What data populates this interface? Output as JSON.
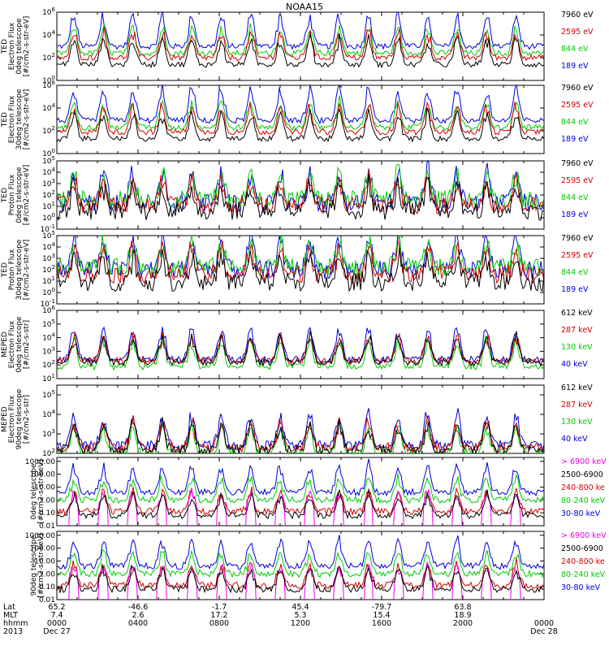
{
  "chart_data": {
    "type": "line",
    "title": "NOAA15",
    "panels": [
      {
        "ylabel": [
          "TED",
          "Electron Flux",
          "0deg telescope",
          "[#/cm2-s-str-eV]"
        ],
        "log_range": [
          0,
          6
        ],
        "ticks": [
          {
            "exp": "0"
          },
          {
            "exp": "2"
          },
          {
            "exp": "4"
          },
          {
            "exp": "6"
          }
        ],
        "legend": [
          "7960 eV",
          "2595 eV",
          "844 eV",
          "189 eV"
        ],
        "legend_colors": [
          "#000000",
          "#d40000",
          "#00cc00",
          "#0000dd"
        ],
        "series_levels": [
          1.4,
          2.0,
          2.4,
          3.0
        ],
        "kind": "ted_e"
      },
      {
        "ylabel": [
          "TED",
          "Electron Flux",
          "30deg telescope",
          "[#/cm2-s-str-eV]"
        ],
        "log_range": [
          0,
          6
        ],
        "ticks": [
          {
            "exp": "0"
          },
          {
            "exp": "2"
          },
          {
            "exp": "4"
          },
          {
            "exp": "6"
          }
        ],
        "legend": [
          "7960 eV",
          "2595 eV",
          "844 eV",
          "189 eV"
        ],
        "legend_colors": [
          "#000000",
          "#d40000",
          "#00cc00",
          "#0000dd"
        ],
        "series_levels": [
          1.3,
          1.9,
          2.3,
          2.9
        ],
        "kind": "ted_e"
      },
      {
        "ylabel": [
          "TED",
          "Proton Flux",
          "0deg telescope",
          "[#/cm2-s-str-eV]"
        ],
        "log_range": [
          -1,
          5
        ],
        "ticks": [
          {
            "exp": "-1"
          },
          {
            "exp": "0"
          },
          {
            "exp": "1"
          },
          {
            "exp": "2"
          },
          {
            "exp": "3"
          },
          {
            "exp": "4"
          },
          {
            "exp": "5"
          }
        ],
        "legend": [
          "7960 eV",
          "2595 eV",
          "844 eV",
          "189 eV"
        ],
        "legend_colors": [
          "#000000",
          "#d40000",
          "#00cc00",
          "#0000dd"
        ],
        "series_levels": [
          0.6,
          1.1,
          1.6,
          1.3
        ],
        "kind": "ted_p"
      },
      {
        "ylabel": [
          "TED",
          "Proton Flux",
          "30deg telescope",
          "[#/cm2-s-str-eV]"
        ],
        "log_range": [
          -1,
          5
        ],
        "ticks": [
          {
            "exp": "-1"
          },
          {
            "exp": "0"
          },
          {
            "exp": "1"
          },
          {
            "exp": "2"
          },
          {
            "exp": "3"
          },
          {
            "exp": "4"
          },
          {
            "exp": "5"
          }
        ],
        "legend": [
          "7960 eV",
          "2595 eV",
          "844 eV",
          "189 eV"
        ],
        "legend_colors": [
          "#000000",
          "#d40000",
          "#00cc00",
          "#0000dd"
        ],
        "series_levels": [
          0.9,
          1.6,
          2.2,
          2.0
        ],
        "kind": "ted_p"
      },
      {
        "ylabel": [
          "MEPED",
          "Electron Flux",
          "0deg telescope",
          "[#/cm2-s-str]"
        ],
        "log_range": [
          1,
          6
        ],
        "ticks": [
          {
            "exp": "1"
          },
          {
            "exp": "2"
          },
          {
            "exp": "3"
          },
          {
            "exp": "4"
          },
          {
            "exp": "5"
          },
          {
            "exp": "6"
          }
        ],
        "legend": [
          "612 keV",
          "287 keV",
          "130 keV",
          "40 keV"
        ],
        "legend_colors": [
          "#000000",
          "#d40000",
          "#00cc00",
          "#0000dd"
        ],
        "series_levels": [
          2.2,
          2.3,
          1.9,
          2.4
        ],
        "kind": "meped_e"
      },
      {
        "ylabel": [
          "MEPED",
          "Electron Flux",
          "90deg telescope",
          "[#/cm2-s-str]"
        ],
        "log_range": [
          2,
          5.5
        ],
        "ticks": [
          {
            "exp": "2"
          },
          {
            "exp": "3"
          },
          {
            "exp": "4"
          },
          {
            "exp": "5"
          }
        ],
        "legend": [
          "612 keV",
          "287 keV",
          "130 keV",
          "40 keV"
        ],
        "legend_colors": [
          "#000000",
          "#d40000",
          "#00cc00",
          "#0000dd"
        ],
        "series_levels": [
          2.2,
          2.3,
          2.0,
          2.4
        ],
        "kind": "meped_e2"
      },
      {
        "ylabel": [
          "0deg telescope",
          "[#/cm2-s-str-keV]"
        ],
        "log_range": [
          -2,
          3.3
        ],
        "ticks": [
          {
            "text": "0.01"
          },
          {
            "text": "0.10"
          },
          {
            "text": "1.00"
          },
          {
            "text": "10.00"
          },
          {
            "text": "100.00"
          },
          {
            "text": "1000.00"
          }
        ],
        "legend": [
          "> 6900 keV",
          "2500-6900",
          "240-800 ke",
          "80-240 keV",
          "30-80 keV"
        ],
        "legend_colors": [
          "#ee00ee",
          "#000000",
          "#d40000",
          "#00cc00",
          "#0000dd"
        ],
        "series_levels": [
          -1.0,
          -1.2,
          -0.9,
          0.0,
          0.6
        ],
        "kind": "prot"
      },
      {
        "ylabel": [
          "90deg telescope",
          "[#/cm2-s-str-keV]"
        ],
        "log_range": [
          -2,
          3.3
        ],
        "ticks": [
          {
            "text": "0.01"
          },
          {
            "text": "0.10"
          },
          {
            "text": "1.00"
          },
          {
            "text": "10.00"
          },
          {
            "text": "100.00"
          },
          {
            "text": "1000.00"
          }
        ],
        "legend": [
          "> 6900 keV",
          "2500-6900",
          "240-800 ke",
          "80-240 keV",
          "30-80 keV"
        ],
        "legend_colors": [
          "#ee00ee",
          "#000000",
          "#d40000",
          "#00cc00",
          "#0000dd"
        ],
        "series_levels": [
          -1.0,
          -1.2,
          -0.9,
          0.0,
          0.6
        ],
        "kind": "prot"
      }
    ],
    "x_axis": {
      "row_labels": [
        "Lat",
        "MLT",
        "hhmm",
        "2013"
      ],
      "columns": [
        {
          "lat": "65.2",
          "mlt": "7.4",
          "hhmm": "0000",
          "date": "Dec 27"
        },
        {
          "lat": "-46.6",
          "mlt": "2.6",
          "hhmm": "0400",
          "date": ""
        },
        {
          "lat": "-1.7",
          "mlt": "17.2",
          "hhmm": "0800",
          "date": ""
        },
        {
          "lat": "45.4",
          "mlt": "5.3",
          "hhmm": "1200",
          "date": ""
        },
        {
          "lat": "-79.7",
          "mlt": "15.4",
          "hhmm": "1600",
          "date": ""
        },
        {
          "lat": "63.8",
          "mlt": "18.9",
          "hhmm": "2000",
          "date": ""
        },
        {
          "lat": "",
          "mlt": "",
          "hhmm": "0000",
          "date": "Dec 28"
        }
      ]
    }
  }
}
